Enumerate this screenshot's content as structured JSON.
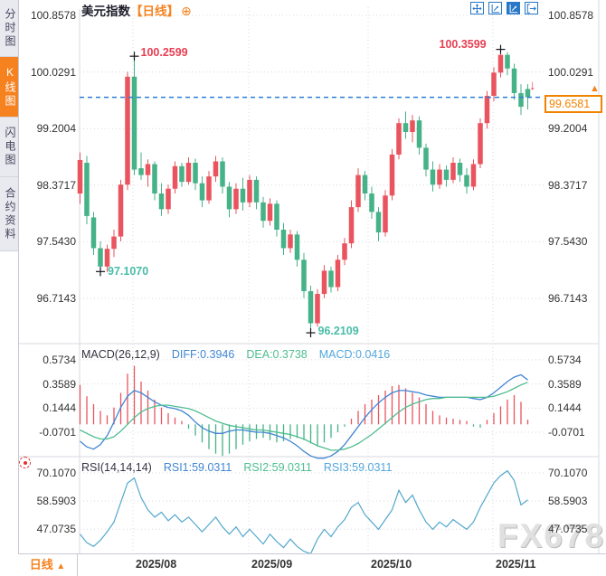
{
  "sidebar": {
    "tabs": [
      {
        "label": "分时图",
        "active": false
      },
      {
        "label": "K线图",
        "active": true
      },
      {
        "label": "闪电图",
        "active": false
      },
      {
        "label": "合约资料",
        "active": false
      }
    ]
  },
  "header": {
    "title": "美元指数",
    "period_tag": "【日线】",
    "add_icon": "⊕"
  },
  "toolbar": {
    "icons": [
      "pan-crosshair",
      "scale-axis",
      "scale-axis-active",
      "collapse-panel"
    ]
  },
  "current_price": {
    "value": "99.6581",
    "axis_arrow": "▲",
    "direction_arrow": "↓"
  },
  "macd_header": {
    "name": "MACD(26,12,9)",
    "diff": "DIFF:0.3946",
    "dea": "DEA:0.3738",
    "macd": "MACD:0.0416"
  },
  "rsi_header": {
    "name": "RSI(14,14,14)",
    "rsi1": "RSI1:59.0311",
    "rsi2": "RSI2:59.0311",
    "rsi3": "RSI3:59.0311"
  },
  "footer": {
    "period": "日线",
    "arrow": "▲"
  },
  "watermark": "FX678",
  "colors": {
    "up": "#e9545e",
    "down": "#45b287",
    "accent_orange": "#f6821f",
    "current_price_line": "#2f7ed8",
    "diff_line": "#4186d3",
    "dea_line": "#4fbd90",
    "rsi_line": "#53a7cc",
    "annotation_red": "#e83e52",
    "annotation_green": "#49bda8",
    "grid": "#d8d8e2",
    "axis_text": "#333333"
  },
  "chart_data": {
    "type": "candlestick",
    "title": "美元指数 日线",
    "x_labels": [
      "2025/08",
      "2025/09",
      "2025/10",
      "2025/11"
    ],
    "price_ticks": [
      100.8578,
      100.0291,
      99.2004,
      98.3717,
      97.543,
      96.7143
    ],
    "price_range": [
      96.35,
      100.95
    ],
    "current_price": 99.6581,
    "grid": true,
    "annotations": [
      {
        "price": 100.2599,
        "index": 8,
        "kind": "high",
        "color": "red",
        "label_offset": [
          7,
          -11
        ]
      },
      {
        "price": 100.3599,
        "index": 62,
        "kind": "high",
        "color": "red",
        "label_offset": [
          -68,
          -13
        ]
      },
      {
        "price": 97.107,
        "index": 3,
        "kind": "low",
        "color": "green",
        "label_offset": [
          8,
          -7
        ]
      },
      {
        "price": 96.2109,
        "index": 34,
        "kind": "low",
        "color": "green",
        "label_offset": [
          8,
          -9
        ]
      }
    ],
    "candles_ohlc": [
      [
        98.25,
        98.85,
        98.1,
        98.74
      ],
      [
        98.7,
        98.8,
        97.8,
        97.92
      ],
      [
        97.9,
        97.98,
        97.35,
        97.45
      ],
      [
        97.45,
        97.55,
        97.107,
        97.18
      ],
      [
        97.18,
        97.5,
        97.1,
        97.44
      ],
      [
        97.44,
        97.72,
        97.32,
        97.62
      ],
      [
        97.62,
        98.45,
        97.55,
        98.38
      ],
      [
        98.38,
        100.03,
        98.3,
        99.96
      ],
      [
        99.96,
        100.2599,
        98.52,
        98.6
      ],
      [
        98.62,
        98.85,
        98.45,
        98.52
      ],
      [
        98.52,
        98.75,
        98.35,
        98.68
      ],
      [
        98.68,
        98.72,
        98.15,
        98.25
      ],
      [
        98.25,
        98.4,
        97.92,
        98.02
      ],
      [
        98.02,
        98.38,
        97.95,
        98.32
      ],
      [
        98.32,
        98.72,
        98.25,
        98.65
      ],
      [
        98.65,
        98.7,
        98.35,
        98.42
      ],
      [
        98.42,
        98.78,
        98.38,
        98.7
      ],
      [
        98.7,
        98.76,
        98.3,
        98.4
      ],
      [
        98.4,
        98.5,
        98.05,
        98.15
      ],
      [
        98.15,
        98.58,
        98.1,
        98.5
      ],
      [
        98.5,
        98.8,
        98.42,
        98.72
      ],
      [
        98.72,
        98.78,
        98.25,
        98.35
      ],
      [
        98.35,
        98.42,
        97.9,
        98.02
      ],
      [
        98.02,
        98.4,
        97.95,
        98.32
      ],
      [
        98.32,
        98.48,
        98.0,
        98.12
      ],
      [
        98.12,
        98.52,
        98.05,
        98.45
      ],
      [
        98.45,
        98.5,
        98.02,
        98.12
      ],
      [
        98.12,
        98.2,
        97.75,
        97.85
      ],
      [
        97.85,
        98.18,
        97.78,
        98.1
      ],
      [
        98.1,
        98.15,
        97.62,
        97.72
      ],
      [
        97.72,
        97.82,
        97.35,
        97.45
      ],
      [
        97.45,
        97.72,
        97.38,
        97.65
      ],
      [
        97.65,
        97.7,
        97.18,
        97.28
      ],
      [
        97.28,
        97.38,
        96.72,
        96.82
      ],
      [
        96.82,
        96.9,
        96.2109,
        96.35
      ],
      [
        96.35,
        96.85,
        96.3,
        96.78
      ],
      [
        96.78,
        97.2,
        96.72,
        97.12
      ],
      [
        97.12,
        97.18,
        96.8,
        96.88
      ],
      [
        96.88,
        97.35,
        96.82,
        97.28
      ],
      [
        97.28,
        97.6,
        97.2,
        97.52
      ],
      [
        97.52,
        98.15,
        97.45,
        98.05
      ],
      [
        98.05,
        98.62,
        97.98,
        98.52
      ],
      [
        98.52,
        98.58,
        98.15,
        98.25
      ],
      [
        98.25,
        98.35,
        97.88,
        97.98
      ],
      [
        97.98,
        98.05,
        97.55,
        97.68
      ],
      [
        97.68,
        98.3,
        97.62,
        98.22
      ],
      [
        98.22,
        98.9,
        98.15,
        98.82
      ],
      [
        98.82,
        99.35,
        98.75,
        99.28
      ],
      [
        99.28,
        99.45,
        99.05,
        99.15
      ],
      [
        99.15,
        99.4,
        99.0,
        99.32
      ],
      [
        99.32,
        99.38,
        98.82,
        98.92
      ],
      [
        98.92,
        98.98,
        98.5,
        98.6
      ],
      [
        98.6,
        98.72,
        98.28,
        98.38
      ],
      [
        98.38,
        98.68,
        98.32,
        98.6
      ],
      [
        98.6,
        98.66,
        98.35,
        98.45
      ],
      [
        98.45,
        98.78,
        98.4,
        98.7
      ],
      [
        98.7,
        98.76,
        98.42,
        98.52
      ],
      [
        98.52,
        98.62,
        98.25,
        98.35
      ],
      [
        98.35,
        98.75,
        98.3,
        98.68
      ],
      [
        98.68,
        99.35,
        98.62,
        99.28
      ],
      [
        99.28,
        99.75,
        99.2,
        99.68
      ],
      [
        99.68,
        100.1,
        99.6,
        100.02
      ],
      [
        100.02,
        100.3599,
        99.95,
        100.28
      ],
      [
        100.28,
        100.32,
        99.98,
        100.08
      ],
      [
        100.08,
        100.15,
        99.62,
        99.72
      ],
      [
        99.72,
        99.85,
        99.4,
        99.52
      ],
      [
        99.78,
        99.85,
        99.48,
        99.6581
      ]
    ],
    "macd": {
      "params": [
        26,
        12,
        9
      ],
      "diff_last": 0.3946,
      "dea_last": 0.3738,
      "macd_last": 0.0416,
      "ticks": [
        0.5734,
        0.3589,
        0.1444,
        -0.0701
      ],
      "hist": [
        0.35,
        0.25,
        0.18,
        0.12,
        0.08,
        0.15,
        0.28,
        0.45,
        0.52,
        0.38,
        0.3,
        0.22,
        0.15,
        0.1,
        0.06,
        0.03,
        -0.04,
        -0.1,
        -0.16,
        -0.22,
        -0.26,
        -0.28,
        -0.26,
        -0.22,
        -0.18,
        -0.15,
        -0.13,
        -0.12,
        -0.14,
        -0.16,
        -0.15,
        -0.13,
        -0.12,
        -0.14,
        -0.17,
        -0.19,
        -0.16,
        -0.12,
        -0.07,
        -0.02,
        0.05,
        0.12,
        0.18,
        0.22,
        0.26,
        0.3,
        0.34,
        0.35,
        0.32,
        0.28,
        0.24,
        0.18,
        0.12,
        0.08,
        0.06,
        0.05,
        0.04,
        0.03,
        -0.02,
        -0.03,
        0.04,
        0.1,
        0.16,
        0.22,
        0.26,
        0.2,
        0.0416
      ],
      "diff": [
        -0.15,
        -0.2,
        -0.22,
        -0.18,
        -0.1,
        0.02,
        0.15,
        0.25,
        0.3,
        0.28,
        0.24,
        0.2,
        0.17,
        0.15,
        0.14,
        0.12,
        0.08,
        0.02,
        -0.03,
        -0.06,
        -0.08,
        -0.08,
        -0.06,
        -0.05,
        -0.05,
        -0.06,
        -0.07,
        -0.07,
        -0.08,
        -0.1,
        -0.12,
        -0.15,
        -0.19,
        -0.24,
        -0.28,
        -0.3,
        -0.3,
        -0.28,
        -0.24,
        -0.18,
        -0.1,
        -0.02,
        0.06,
        0.13,
        0.19,
        0.24,
        0.28,
        0.3,
        0.3,
        0.29,
        0.28,
        0.26,
        0.25,
        0.24,
        0.24,
        0.24,
        0.24,
        0.24,
        0.23,
        0.22,
        0.24,
        0.28,
        0.33,
        0.38,
        0.42,
        0.44,
        0.3946
      ],
      "dea": [
        -0.05,
        -0.08,
        -0.11,
        -0.13,
        -0.13,
        -0.11,
        -0.06,
        0.0,
        0.06,
        0.11,
        0.14,
        0.16,
        0.17,
        0.17,
        0.16,
        0.15,
        0.14,
        0.12,
        0.09,
        0.06,
        0.03,
        0.01,
        -0.01,
        -0.02,
        -0.03,
        -0.04,
        -0.05,
        -0.05,
        -0.06,
        -0.07,
        -0.08,
        -0.09,
        -0.11,
        -0.13,
        -0.16,
        -0.19,
        -0.21,
        -0.23,
        -0.23,
        -0.22,
        -0.2,
        -0.17,
        -0.13,
        -0.09,
        -0.04,
        0.01,
        0.06,
        0.11,
        0.15,
        0.18,
        0.2,
        0.22,
        0.23,
        0.23,
        0.24,
        0.24,
        0.24,
        0.24,
        0.24,
        0.24,
        0.24,
        0.25,
        0.27,
        0.29,
        0.32,
        0.35,
        0.3738
      ]
    },
    "rsi": {
      "params": [
        14,
        14,
        14
      ],
      "rsi1_last": 59.0311,
      "rsi2_last": 59.0311,
      "rsi3_last": 59.0311,
      "ticks": [
        70.107,
        58.5903,
        47.0735
      ],
      "values": [
        45,
        41.5,
        40,
        42.5,
        46,
        50,
        58,
        66,
        68,
        60,
        55,
        52,
        54,
        50.5,
        53,
        50,
        52,
        49,
        46,
        49,
        52,
        48,
        45,
        48,
        44,
        47,
        44,
        41,
        45,
        42,
        39.5,
        43,
        40,
        38,
        37,
        43,
        47,
        44,
        48,
        51,
        56,
        58,
        53,
        50,
        47,
        51,
        55,
        63,
        58,
        61,
        55,
        50,
        47,
        50,
        48,
        51,
        49,
        47,
        50,
        56,
        61,
        66,
        69,
        71,
        67,
        57,
        59.0311
      ]
    }
  }
}
